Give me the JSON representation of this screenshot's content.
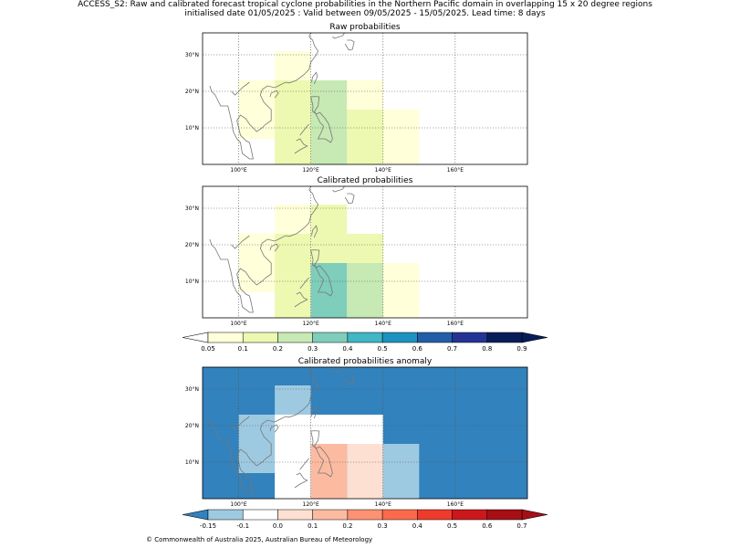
{
  "header": {
    "line1": "ACCESS_S2: Raw and calibrated forecast tropical cyclone probabilities in the Northern Pacific domain in overlapping 15 x 20 degree regions",
    "line2": "initialised date 01/05/2025 :  Valid between 09/05/2025 - 15/05/2025. Lead time: 8 days"
  },
  "footer": "© Commonwealth of Australia 2025, Australian Bureau of Meteorology",
  "colors": {
    "prob": [
      "#ffffd9",
      "#edf8b1",
      "#c7e9b4",
      "#7fcdbb",
      "#41b6c4",
      "#1d91c0",
      "#225ea8",
      "#253494",
      "#081d58"
    ],
    "anom": [
      "#3182bd",
      "#9ecae1",
      "#ffffff",
      "#fee0d2",
      "#fcbba1",
      "#fc9272",
      "#fb6a4a",
      "#ef3b2c",
      "#cb181d",
      "#a50f15"
    ]
  },
  "chart_data": [
    {
      "type": "heatmap",
      "title": "Raw probabilities",
      "xlim": [
        90,
        180
      ],
      "ylim": [
        0,
        36
      ],
      "xticks": [
        {
          "v": 100,
          "label": "100°E"
        },
        {
          "v": 120,
          "label": "120°E"
        },
        {
          "v": 140,
          "label": "140°E"
        },
        {
          "v": 160,
          "label": "160°E"
        }
      ],
      "yticks": [
        {
          "v": 10,
          "label": "10°N"
        },
        {
          "v": 20,
          "label": "20°N"
        },
        {
          "v": 30,
          "label": "30°N"
        }
      ],
      "cells": [
        {
          "lon": [
            100,
            110
          ],
          "lat": [
            7,
            23
          ],
          "bin": 0
        },
        {
          "lon": [
            110,
            120
          ],
          "lat": [
            23,
            31
          ],
          "bin": 0
        },
        {
          "lon": [
            130,
            140
          ],
          "lat": [
            15,
            23
          ],
          "bin": 0
        },
        {
          "lon": [
            140,
            150
          ],
          "lat": [
            0,
            15
          ],
          "bin": 0
        },
        {
          "lon": [
            110,
            130
          ],
          "lat": [
            0,
            23
          ],
          "bin": 1
        },
        {
          "lon": [
            130,
            140
          ],
          "lat": [
            0,
            15
          ],
          "bin": 1
        },
        {
          "lon": [
            120,
            130
          ],
          "lat": [
            15,
            23
          ],
          "bin": 2
        },
        {
          "lon": [
            130,
            140
          ],
          "lat": [
            15,
            23
          ],
          "bin": 0
        },
        {
          "lon": [
            120,
            130
          ],
          "lat": [
            0,
            15
          ],
          "bin": 2
        }
      ]
    },
    {
      "type": "heatmap",
      "title": "Calibrated probabilities",
      "xlim": [
        90,
        180
      ],
      "ylim": [
        0,
        36
      ],
      "xticks": [
        {
          "v": 100,
          "label": "100°E"
        },
        {
          "v": 120,
          "label": "120°E"
        },
        {
          "v": 140,
          "label": "140°E"
        },
        {
          "v": 160,
          "label": "160°E"
        }
      ],
      "yticks": [
        {
          "v": 10,
          "label": "10°N"
        },
        {
          "v": 20,
          "label": "20°N"
        },
        {
          "v": 30,
          "label": "30°N"
        }
      ],
      "cells": [
        {
          "lon": [
            100,
            110
          ],
          "lat": [
            7,
            23
          ],
          "bin": 0
        },
        {
          "lon": [
            110,
            120
          ],
          "lat": [
            23,
            31
          ],
          "bin": 0
        },
        {
          "lon": [
            140,
            150
          ],
          "lat": [
            0,
            15
          ],
          "bin": 0
        },
        {
          "lon": [
            110,
            120
          ],
          "lat": [
            0,
            23
          ],
          "bin": 1
        },
        {
          "lon": [
            120,
            140
          ],
          "lat": [
            15,
            23
          ],
          "bin": 1
        },
        {
          "lon": [
            120,
            130
          ],
          "lat": [
            23,
            31
          ],
          "bin": 1
        },
        {
          "lon": [
            130,
            140
          ],
          "lat": [
            0,
            15
          ],
          "bin": 2
        },
        {
          "lon": [
            120,
            130
          ],
          "lat": [
            0,
            15
          ],
          "bin": 3
        }
      ]
    },
    {
      "type": "heatmap",
      "title": "Calibrated probabilities anomaly",
      "xlim": [
        90,
        180
      ],
      "ylim": [
        0,
        36
      ],
      "xticks": [
        {
          "v": 100,
          "label": "100°E"
        },
        {
          "v": 120,
          "label": "120°E"
        },
        {
          "v": 140,
          "label": "140°E"
        },
        {
          "v": 160,
          "label": "160°E"
        }
      ],
      "yticks": [
        {
          "v": 10,
          "label": "10°N"
        },
        {
          "v": 20,
          "label": "20°N"
        },
        {
          "v": 30,
          "label": "30°N"
        }
      ],
      "background_bin": 0,
      "cells": [
        {
          "lon": [
            100,
            110
          ],
          "lat": [
            7,
            23
          ],
          "bin": 1
        },
        {
          "lon": [
            110,
            120
          ],
          "lat": [
            23,
            31
          ],
          "bin": 1
        },
        {
          "lon": [
            110,
            120
          ],
          "lat": [
            0,
            23
          ],
          "bin": 2
        },
        {
          "lon": [
            120,
            140
          ],
          "lat": [
            15,
            23
          ],
          "bin": 2
        },
        {
          "lon": [
            120,
            130
          ],
          "lat": [
            0,
            15
          ],
          "bin": 4
        },
        {
          "lon": [
            130,
            140
          ],
          "lat": [
            0,
            15
          ],
          "bin": 3
        },
        {
          "lon": [
            140,
            150
          ],
          "lat": [
            0,
            15
          ],
          "bin": 1
        }
      ]
    }
  ],
  "colorbars": [
    {
      "ticks": [
        "0.05",
        "0.1",
        "0.2",
        "0.3",
        "0.4",
        "0.5",
        "0.6",
        "0.7",
        "0.8",
        "0.9"
      ],
      "extend": "both",
      "palette": "prob"
    },
    {
      "ticks": [
        "-0.15",
        "-0.1",
        "0.0",
        "0.1",
        "0.2",
        "0.3",
        "0.4",
        "0.5",
        "0.6",
        "0.7"
      ],
      "extend": "both",
      "palette": "anom"
    }
  ]
}
